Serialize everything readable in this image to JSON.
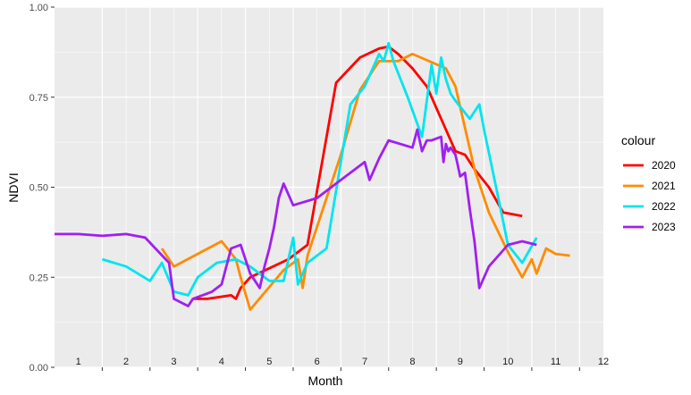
{
  "chart_data": {
    "type": "line",
    "xlabel": "Month",
    "ylabel": "NDVI",
    "ylim": [
      0,
      1
    ],
    "y_ticks": [
      "0.00",
      "0.25",
      "0.50",
      "0.75",
      "1.00"
    ],
    "xlim": [
      0.5,
      12.0
    ],
    "month_labels": [
      "1",
      "2",
      "3",
      "4",
      "5",
      "6",
      "7",
      "8",
      "9",
      "10",
      "11",
      "12"
    ],
    "grid": true,
    "legend": {
      "title": "colour",
      "position": "right"
    },
    "series": [
      {
        "name": "2020",
        "color": "#ff0000",
        "x": [
          3.4,
          3.7,
          4.2,
          4.3,
          4.4,
          4.6,
          5.4,
          5.8,
          6.4,
          6.9,
          7.3,
          7.5,
          7.7,
          8.0,
          8.3,
          8.9,
          9.1,
          9.3,
          9.6,
          9.9,
          10.3
        ],
        "y": [
          0.19,
          0.19,
          0.2,
          0.19,
          0.22,
          0.25,
          0.3,
          0.34,
          0.79,
          0.86,
          0.885,
          0.89,
          0.87,
          0.83,
          0.78,
          0.6,
          0.59,
          0.55,
          0.5,
          0.43,
          0.42
        ]
      },
      {
        "name": "2021",
        "color": "#ff8c00",
        "x": [
          2.75,
          3.0,
          4.0,
          4.3,
          4.4,
          4.6,
          5.3,
          5.6,
          5.7,
          5.8,
          6.5,
          6.9,
          7.3,
          7.7,
          8.0,
          8.7,
          8.9,
          9.3,
          9.6,
          10.0,
          10.3,
          10.5,
          10.6,
          10.8,
          11.0,
          11.3
        ],
        "y": [
          0.33,
          0.28,
          0.35,
          0.3,
          0.25,
          0.16,
          0.27,
          0.3,
          0.22,
          0.31,
          0.59,
          0.77,
          0.85,
          0.85,
          0.87,
          0.83,
          0.78,
          0.55,
          0.43,
          0.32,
          0.25,
          0.3,
          0.26,
          0.33,
          0.315,
          0.31
        ]
      },
      {
        "name": "2022",
        "color": "#00e5ee",
        "x": [
          1.5,
          2.0,
          2.5,
          2.75,
          3.0,
          3.3,
          3.5,
          3.9,
          4.3,
          4.6,
          5.0,
          5.3,
          5.5,
          5.6,
          5.7,
          5.8,
          6.2,
          6.7,
          7.0,
          7.3,
          7.4,
          7.5,
          7.6,
          7.9,
          8.2,
          8.4,
          8.5,
          8.6,
          8.7,
          8.8,
          8.9,
          9.2,
          9.4,
          9.5,
          9.8,
          10.0,
          10.3,
          10.6
        ],
        "y": [
          0.3,
          0.28,
          0.24,
          0.29,
          0.21,
          0.2,
          0.25,
          0.29,
          0.3,
          0.28,
          0.24,
          0.24,
          0.36,
          0.23,
          0.26,
          0.29,
          0.33,
          0.73,
          0.78,
          0.87,
          0.85,
          0.9,
          0.85,
          0.75,
          0.64,
          0.84,
          0.76,
          0.86,
          0.8,
          0.76,
          0.74,
          0.69,
          0.73,
          0.66,
          0.47,
          0.34,
          0.29,
          0.36
        ]
      },
      {
        "name": "2023",
        "color": "#a020f0",
        "x": [
          0.5,
          1.0,
          1.5,
          2.0,
          2.4,
          2.9,
          3.0,
          3.3,
          3.4,
          3.6,
          3.8,
          4.0,
          4.2,
          4.4,
          4.6,
          4.8,
          4.9,
          5.0,
          5.1,
          5.2,
          5.3,
          5.5,
          6.0,
          6.5,
          7.0,
          7.1,
          7.3,
          7.5,
          8.0,
          8.1,
          8.2,
          8.3,
          8.4,
          8.6,
          8.65,
          8.7,
          8.75,
          8.8,
          8.9,
          8.95,
          9.0,
          9.1,
          9.2,
          9.3,
          9.4,
          9.6,
          10.0,
          10.3,
          10.6
        ],
        "y": [
          0.37,
          0.37,
          0.365,
          0.37,
          0.36,
          0.29,
          0.19,
          0.17,
          0.19,
          0.2,
          0.21,
          0.23,
          0.33,
          0.34,
          0.26,
          0.22,
          0.28,
          0.33,
          0.39,
          0.47,
          0.51,
          0.45,
          0.47,
          0.52,
          0.57,
          0.52,
          0.58,
          0.63,
          0.61,
          0.66,
          0.6,
          0.63,
          0.63,
          0.64,
          0.57,
          0.62,
          0.6,
          0.61,
          0.59,
          0.56,
          0.53,
          0.54,
          0.44,
          0.35,
          0.22,
          0.28,
          0.34,
          0.35,
          0.34
        ]
      }
    ]
  }
}
